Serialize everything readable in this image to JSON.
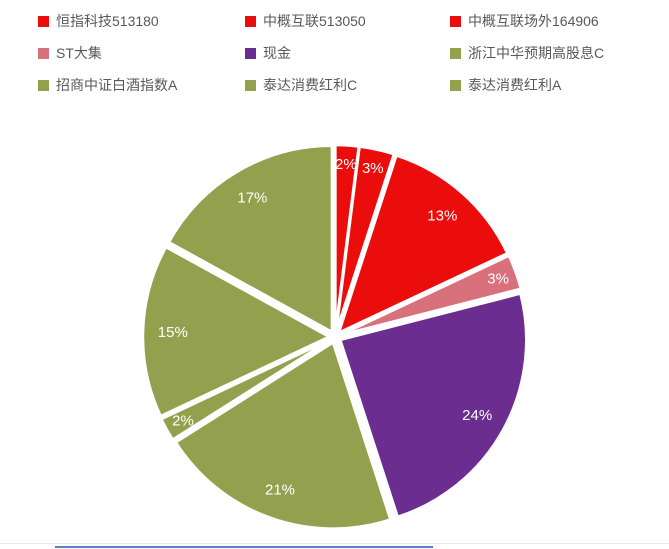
{
  "page": {
    "background": "#ffffff"
  },
  "legend": {
    "position": "top",
    "text_color": "#595959",
    "items": [
      {
        "label": "恒指科技513180",
        "color": "#ea0d0c"
      },
      {
        "label": "中概互联513050",
        "color": "#ea0d0c"
      },
      {
        "label": "中概互联场外164906",
        "color": "#ea0d0c"
      },
      {
        "label": "ST大集",
        "color": "#d9717d"
      },
      {
        "label": "现金",
        "color": "#6b2d90"
      },
      {
        "label": "浙江中华预期高股息C",
        "color": "#93a14f"
      },
      {
        "label": "招商中证白酒指数A",
        "color": "#93a14f"
      },
      {
        "label": "泰达消费红利C",
        "color": "#93a14f"
      },
      {
        "label": "泰达消费红利A",
        "color": "#93a14f"
      }
    ]
  },
  "chart_data": {
    "type": "pie",
    "title": "",
    "categories": [
      "恒指科技513180",
      "中概互联513050",
      "中概互联场外164906",
      "ST大集",
      "现金",
      "浙江中华预期高股息C",
      "招商中证白酒指数A",
      "泰达消费红利C",
      "泰达消费红利A"
    ],
    "values": [
      2,
      3,
      13,
      3,
      24,
      21,
      2,
      15,
      17
    ],
    "data_labels": [
      "2%",
      "3%",
      "13%",
      "3%",
      "24%",
      "21%",
      "2%",
      "15%",
      "17%"
    ],
    "colors": [
      "#ea0d0c",
      "#ea0d0c",
      "#ea0d0c",
      "#d9717d",
      "#6b2d90",
      "#93a14f",
      "#93a14f",
      "#93a14f",
      "#93a14f"
    ],
    "label_color": "#ffffff",
    "slice_border_color": "#ffffff",
    "start_angle_deg": 0,
    "direction": "clockwise",
    "separated": true,
    "legend_position": "top"
  },
  "bottom_partial": {
    "color": "#4472c4"
  }
}
